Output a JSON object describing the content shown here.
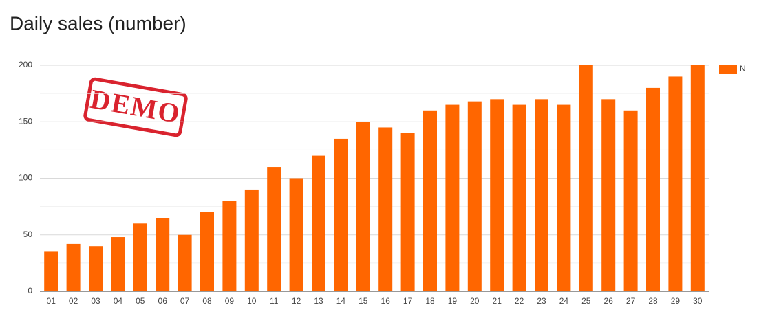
{
  "chart_data": {
    "type": "bar",
    "title": "Daily sales (number)",
    "watermark": "DEMO",
    "categories": [
      "01",
      "02",
      "03",
      "04",
      "05",
      "06",
      "07",
      "08",
      "09",
      "10",
      "11",
      "12",
      "13",
      "14",
      "15",
      "16",
      "17",
      "18",
      "19",
      "20",
      "21",
      "22",
      "23",
      "24",
      "25",
      "26",
      "27",
      "28",
      "29",
      "30"
    ],
    "series": [
      {
        "name": "N",
        "color": "#ff6600",
        "values": [
          35,
          42,
          40,
          48,
          60,
          65,
          50,
          70,
          80,
          90,
          110,
          100,
          120,
          135,
          150,
          145,
          140,
          160,
          165,
          168,
          170,
          165,
          170,
          165,
          200,
          170,
          160,
          180,
          190,
          200
        ]
      }
    ],
    "ylim": [
      0,
      200
    ],
    "yticks": [
      0,
      50,
      100,
      150,
      200
    ],
    "minor_yticks": [
      25,
      75,
      125,
      175
    ],
    "grid": true,
    "legend": "right"
  }
}
